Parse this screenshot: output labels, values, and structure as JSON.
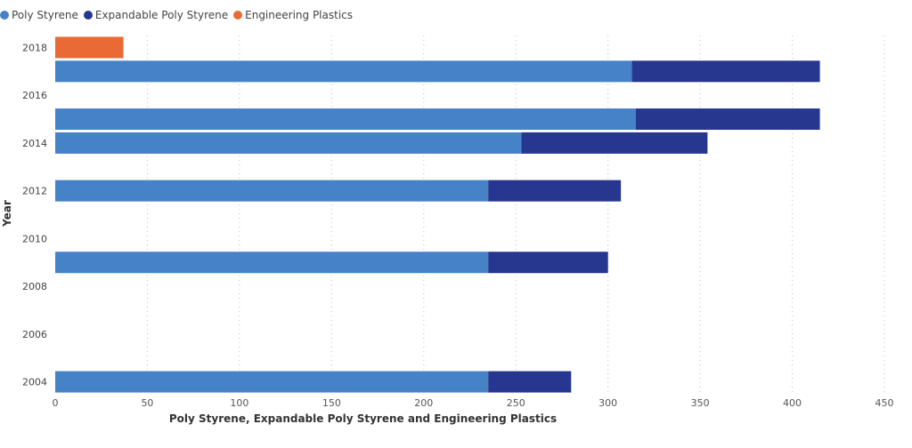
{
  "chart_data": {
    "type": "bar",
    "orientation": "horizontal",
    "stacked": true,
    "title": "",
    "xlabel": "Poly Styrene, Expandable Poly Styrene and Engineering Plastics",
    "ylabel": "Year",
    "xlim": [
      0,
      450
    ],
    "x_ticks": [
      "0",
      "50",
      "100",
      "150",
      "200",
      "250",
      "300",
      "350",
      "400",
      "450"
    ],
    "y_ticks": [
      "2004",
      "2006",
      "2008",
      "2010",
      "2012",
      "2014",
      "2016",
      "2018"
    ],
    "ylim": [
      2003.5,
      2018.5
    ],
    "grid": "vertical dotted",
    "legend_position": "top-left",
    "categories": [
      2004,
      2009,
      2012,
      2014,
      2015,
      2017,
      2018
    ],
    "series": [
      {
        "name": "Poly Styrene",
        "color": "#4682c8",
        "values": [
          235,
          235,
          235,
          253,
          315,
          313,
          0
        ]
      },
      {
        "name": "Expandable Poly Styrene",
        "color": "#27368f",
        "values": [
          45,
          65,
          72,
          101,
          100,
          102,
          0
        ]
      },
      {
        "name": "Engineering Plastics",
        "color": "#ea6a35",
        "values": [
          0,
          0,
          0,
          0,
          0,
          0,
          37
        ]
      }
    ]
  }
}
